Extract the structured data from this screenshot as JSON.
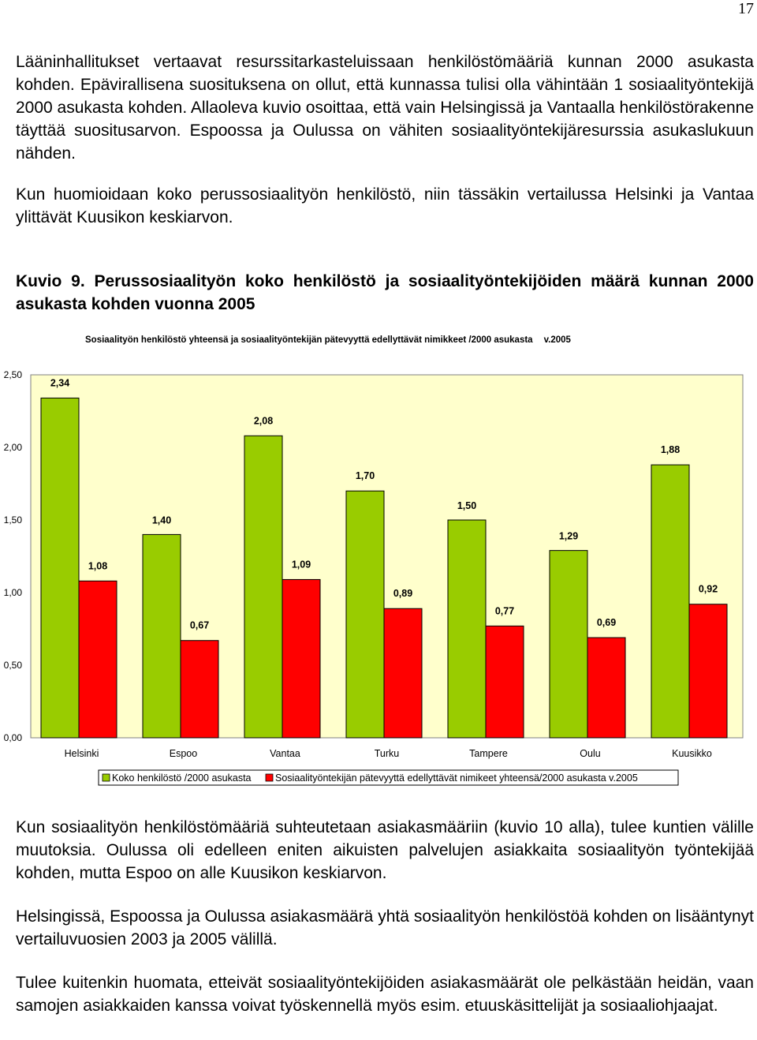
{
  "page_number": "17",
  "paragraphs": {
    "p1": "Lääninhallitukset vertaavat resurssitarkasteluissaan henkilöstömääriä kunnan 2000 asukasta kohden. Epävirallisena suosituksena on ollut, että kunnassa tulisi olla vähintään 1 sosiaalityöntekijä 2000 asukasta kohden. Allaoleva kuvio osoittaa, että vain Helsingissä ja Vantaalla henkilöstörakenne täyttää suositusarvon. Espoossa ja Oulussa on vähiten sosiaalityöntekijäresurssia asukaslukuun nähden.",
    "p2": "Kun huomioidaan koko perussosiaalityön henkilöstö, niin tässäkin vertailussa Helsinki ja Vantaa ylittävät Kuusikon keskiarvon.",
    "caption": "Kuvio 9. Perussosiaalityön koko henkilöstö ja sosiaalityöntekijöiden määrä kunnan 2000 asukasta kohden vuonna 2005",
    "p3": "Kun sosiaalityön henkilöstömääriä suhteutetaan asiakasmääriin (kuvio 10 alla), tulee kuntien välille muutoksia. Oulussa oli edelleen eniten aikuisten palvelujen asiakkaita sosiaalityön työntekijää kohden, mutta Espoo on alle Kuusikon keskiarvon.",
    "p4": " Helsingissä, Espoossa ja Oulussa asiakasmäärä yhtä sosiaalityön henkilöstöä kohden on lisääntynyt vertailuvuosien 2003 ja 2005 välillä.",
    "p5": "Tulee kuitenkin huomata, etteivät sosiaalityöntekijöiden asiakasmäärät ole pelkästään heidän, vaan samojen asiakkaiden kanssa voivat työskennellä myös esim. etuuskäsittelijät ja sosiaaliohjaajat."
  },
  "chart_data": {
    "type": "bar",
    "title": "Sosiaalityön henkilöstö yhteensä ja sosiaalityöntekijän pätevyyttä edellyttävät nimikkeet /2000 asukasta",
    "title_suffix": "v.2005",
    "categories": [
      "Helsinki",
      "Espoo",
      "Vantaa",
      "Turku",
      "Tampere",
      "Oulu",
      "Kuusikko"
    ],
    "series": [
      {
        "name": "Koko henkilöstö /2000 asukasta",
        "color": "#99cc00",
        "values": [
          2.34,
          1.4,
          2.08,
          1.7,
          1.5,
          1.29,
          1.88
        ],
        "labels": [
          "2,34",
          "1,40",
          "2,08",
          "1,70",
          "1,50",
          "1,29",
          "1,88"
        ]
      },
      {
        "name": "Sosiaalityöntekijän pätevyyttä edellyttävät nimikeet yhteensä/2000 asukasta v.2005",
        "color": "#ff0000",
        "values": [
          1.08,
          0.67,
          1.09,
          0.89,
          0.77,
          0.69,
          0.92
        ],
        "labels": [
          "1,08",
          "0,67",
          "1,09",
          "0,89",
          "0,77",
          "0,69",
          "0,92"
        ]
      }
    ],
    "ylim": [
      0,
      2.5
    ],
    "yticks": [
      "0,00",
      "0,50",
      "1,00",
      "1,50",
      "2,00",
      "2,50"
    ],
    "plot_background": "#ffffcc",
    "grid": false,
    "legend_position": "bottom",
    "xlabel": "",
    "ylabel": ""
  }
}
